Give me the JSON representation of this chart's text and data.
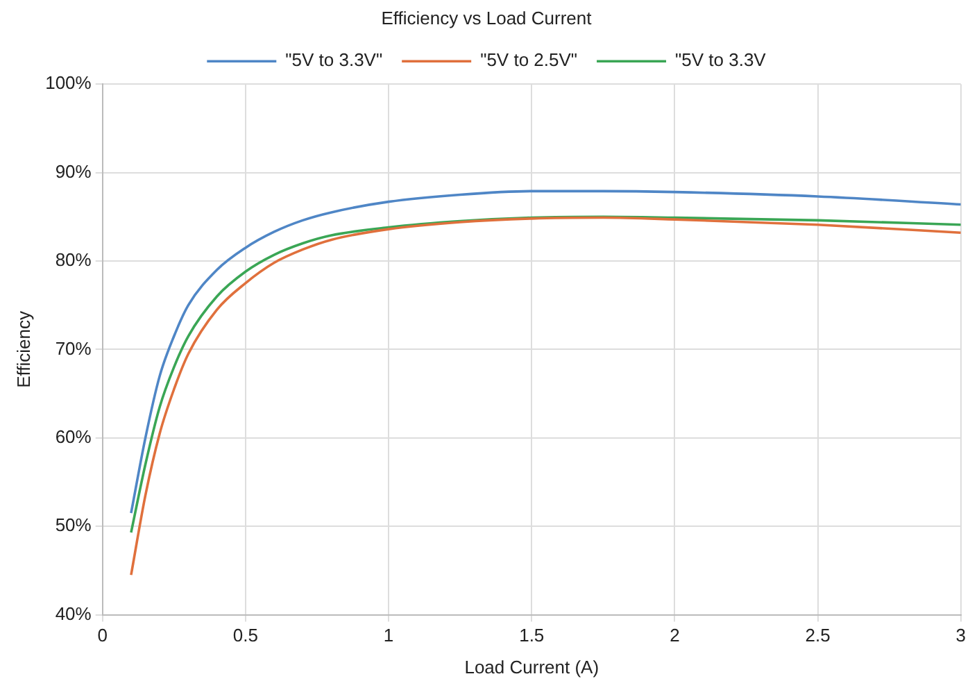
{
  "chart_data": {
    "type": "line",
    "title": "Efficiency vs Load Current",
    "xlabel": "Load Current (A)",
    "ylabel": "Efficiency",
    "x": [
      0.1,
      0.15,
      0.2,
      0.25,
      0.3,
      0.4,
      0.5,
      0.6,
      0.7,
      0.8,
      1.0,
      1.25,
      1.5,
      1.75,
      2.0,
      2.5,
      3.0
    ],
    "series": [
      {
        "name": "\"5V to 3.3V\"",
        "color": "#4f86c6",
        "values": [
          51.5,
          60,
          67,
          71.5,
          75,
          79,
          81.5,
          83.3,
          84.6,
          85.5,
          86.7,
          87.5,
          87.9,
          87.9,
          87.8,
          87.3,
          86.4
        ]
      },
      {
        "name": "\"5V to 2.5V\"",
        "color": "#e0703c",
        "values": [
          44.5,
          53.5,
          60.5,
          65.5,
          69.5,
          74.5,
          77.5,
          79.8,
          81.3,
          82.4,
          83.6,
          84.4,
          84.8,
          84.9,
          84.7,
          84.1,
          83.2
        ]
      },
      {
        "name": "\"5V to 3.3V",
        "color": "#3aa655",
        "values": [
          49.3,
          57,
          63.5,
          68,
          71.5,
          76,
          78.8,
          80.7,
          82,
          82.9,
          83.8,
          84.5,
          84.9,
          85,
          84.9,
          84.6,
          84.1
        ]
      }
    ],
    "xlim": [
      0,
      3
    ],
    "xticks": [
      0,
      0.5,
      1,
      1.5,
      2,
      2.5,
      3
    ],
    "ylim": [
      40,
      100
    ],
    "yticks": [
      {
        "value": 40,
        "label": "40%"
      },
      {
        "value": 50,
        "label": "50%"
      },
      {
        "value": 60,
        "label": "60%"
      },
      {
        "value": 70,
        "label": "70%"
      },
      {
        "value": 80,
        "label": "80%"
      },
      {
        "value": 90,
        "label": "90%"
      },
      {
        "value": 100,
        "label": "100%"
      }
    ],
    "grid": true,
    "legend": "top",
    "marker": "none",
    "line_style": "solid"
  }
}
